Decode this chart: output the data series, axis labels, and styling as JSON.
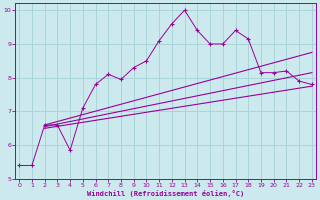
{
  "xlabel": "Windchill (Refroidissement éolien,°C)",
  "xlim": [
    -0.3,
    23.3
  ],
  "ylim": [
    5.0,
    10.2
  ],
  "xticks": [
    0,
    1,
    2,
    3,
    4,
    5,
    6,
    7,
    8,
    9,
    10,
    11,
    12,
    13,
    14,
    15,
    16,
    17,
    18,
    19,
    20,
    21,
    22,
    23
  ],
  "yticks": [
    5,
    6,
    7,
    8,
    9,
    10
  ],
  "bg_color": "#cce9ed",
  "grid_color": "#a8d4da",
  "line_color": "#990099",
  "figsize": [
    3.2,
    2.0
  ],
  "dpi": 100,
  "lines": [
    {
      "x": [
        0,
        1,
        2,
        3,
        4,
        5,
        6,
        7,
        8,
        9,
        10,
        11,
        12,
        13,
        14,
        15,
        16,
        17,
        18,
        19,
        20,
        21,
        22,
        23
      ],
      "y": [
        5.4,
        5.4,
        6.6,
        6.6,
        5.85,
        7.1,
        7.8,
        8.1,
        7.95,
        8.3,
        8.5,
        9.1,
        9.6,
        10.0,
        9.4,
        9.0,
        9.0,
        9.4,
        9.15,
        8.15,
        8.15,
        8.2,
        7.9,
        7.8
      ],
      "marker": "+"
    },
    {
      "x": [
        2,
        23
      ],
      "y": [
        6.6,
        8.75
      ],
      "marker": null,
      "curve": false
    },
    {
      "x": [
        2,
        23
      ],
      "y": [
        6.55,
        8.15
      ],
      "marker": null,
      "curve": false
    },
    {
      "x": [
        2,
        23
      ],
      "y": [
        6.5,
        7.75
      ],
      "marker": null,
      "curve": false
    }
  ]
}
